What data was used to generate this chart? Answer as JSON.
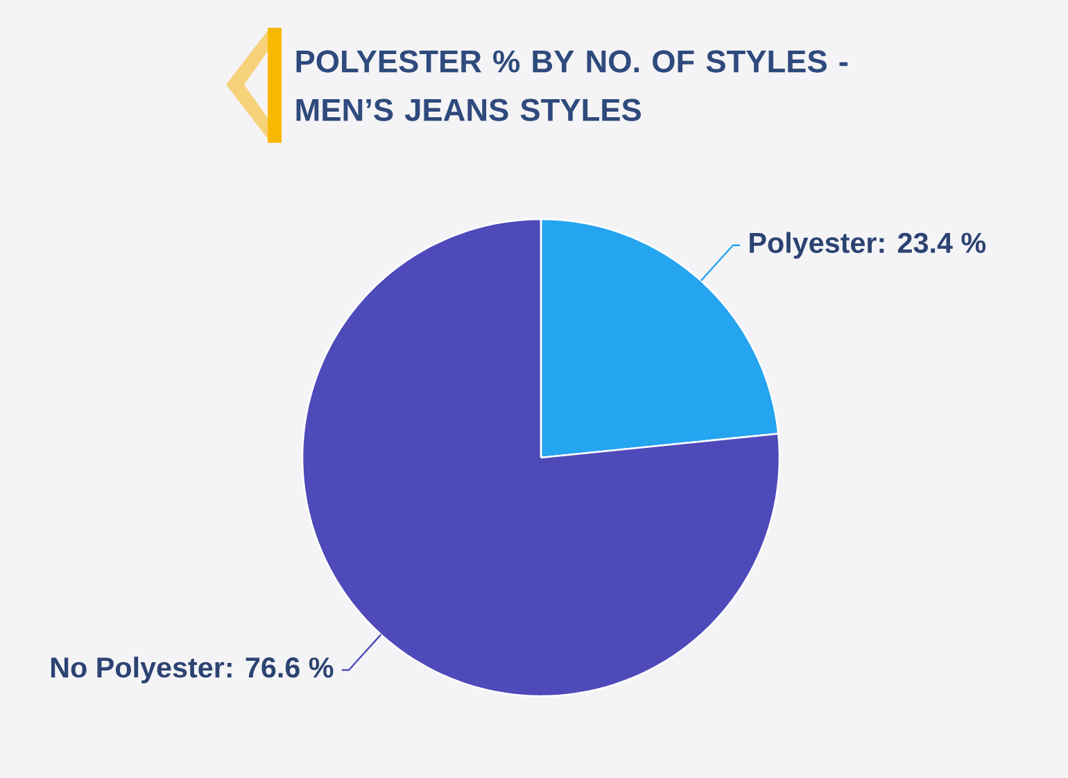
{
  "chart_data": {
    "type": "pie",
    "title": "POLYESTER % BY NO. OF STYLES - MEN’S JEANS STYLES",
    "categories": [
      "Polyester",
      "No Polyester"
    ],
    "values": [
      23.4,
      76.6
    ],
    "colors": [
      "#25a4f0",
      "#4f4ab9"
    ],
    "value_labels": [
      ": 23.4 %",
      ": 76.6 %"
    ]
  }
}
